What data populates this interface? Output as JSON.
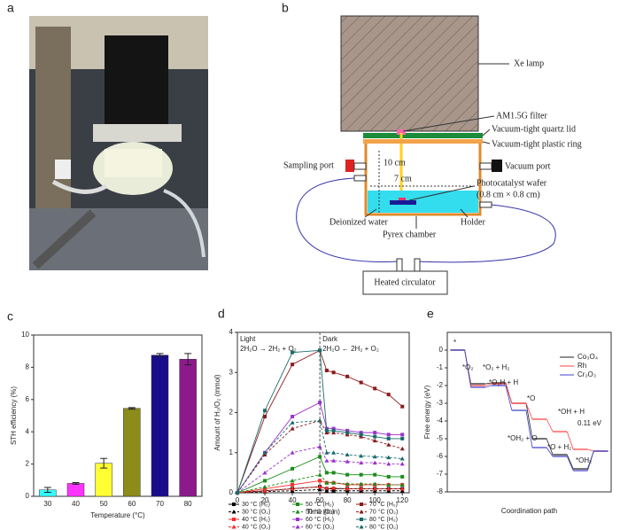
{
  "panels": {
    "a": "a",
    "b": "b",
    "c": "c",
    "d": "d",
    "e": "e"
  },
  "diagram": {
    "xe_lamp": "Xe lamp",
    "filter": "AM1.5G filter",
    "lid": "Vacuum-tight quartz lid",
    "ring": "Vacuum-tight plastic ring",
    "sampling": "Sampling port",
    "height": "10 cm",
    "vacuum": "Vacuum port",
    "width": "7 cm",
    "wafer": "Photocatalyst wafer",
    "wafer_size": "(0.8 cm × 0.8 cm)",
    "water": "Deionized water",
    "holder": "Holder",
    "chamber": "Pyrex chamber",
    "circulator": "Heated circulator"
  },
  "chart_data": [
    {
      "type": "bar",
      "categories": [
        "30",
        "40",
        "50",
        "60",
        "70",
        "80"
      ],
      "values": [
        0.4,
        0.8,
        2.05,
        5.45,
        8.75,
        8.5
      ],
      "errors": [
        0.15,
        0.05,
        0.3,
        0.05,
        0.1,
        0.35
      ],
      "colors": [
        "#33ffff",
        "#ff33ff",
        "#ffff33",
        "#8c8c1a",
        "#1a0d8c",
        "#8c1a8c"
      ],
      "ylim": [
        0,
        10
      ],
      "yticks": [
        0,
        2,
        4,
        6,
        8,
        10
      ],
      "xlabel": "Temperature (°C)",
      "ylabel": "STH efficiency (%)"
    },
    {
      "type": "line",
      "x": [
        0,
        20,
        40,
        60,
        65,
        70,
        80,
        90,
        100,
        110,
        120
      ],
      "xlim": [
        0,
        125
      ],
      "xticks": [
        0,
        20,
        40,
        60,
        80,
        100,
        120
      ],
      "ylim": [
        0,
        4
      ],
      "yticks": [
        0,
        1,
        2,
        3,
        4
      ],
      "divider": 60,
      "xlabel": "Time (min)",
      "ylabel": "Amount of H₂/O₂ (mmol)",
      "annotations": [
        "Light",
        "2H₂O → 2H₂ + O₂",
        "Dark",
        "2H₂O ← 2H₂ + O₂"
      ],
      "series": [
        {
          "name": "30 °C (H₂)",
          "color": "#000000",
          "dash": false,
          "marker": "square",
          "values": [
            0,
            0.05,
            0.1,
            0.15,
            0.1,
            0.1,
            0.1,
            0.1,
            0.1,
            0.1,
            0.1
          ]
        },
        {
          "name": "30 °C (O₂)",
          "color": "#000000",
          "dash": true,
          "marker": "triangle",
          "values": [
            0,
            0.03,
            0.05,
            0.08,
            0.05,
            0.05,
            0.05,
            0.05,
            0.05,
            0.05,
            0.05
          ]
        },
        {
          "name": "40 °C (H₂)",
          "color": "#ff2a2a",
          "dash": false,
          "marker": "square",
          "values": [
            0,
            0.1,
            0.2,
            0.3,
            0.25,
            0.25,
            0.2,
            0.2,
            0.2,
            0.2,
            0.2
          ]
        },
        {
          "name": "40 °C (O₂)",
          "color": "#ff2a2a",
          "dash": true,
          "marker": "triangle",
          "values": [
            0,
            0.05,
            0.1,
            0.15,
            0.12,
            0.12,
            0.1,
            0.1,
            0.1,
            0.1,
            0.1
          ]
        },
        {
          "name": "50 °C (H₂)",
          "color": "#1a8c1a",
          "dash": false,
          "marker": "square",
          "values": [
            0,
            0.3,
            0.6,
            0.9,
            0.5,
            0.5,
            0.45,
            0.45,
            0.45,
            0.4,
            0.4
          ]
        },
        {
          "name": "50 °C (O₂)",
          "color": "#1a8c1a",
          "dash": true,
          "marker": "triangle",
          "values": [
            0,
            0.15,
            0.3,
            0.45,
            0.25,
            0.25,
            0.22,
            0.22,
            0.22,
            0.2,
            0.2
          ]
        },
        {
          "name": "60 °C (H₂)",
          "color": "#9933cc",
          "dash": false,
          "marker": "square",
          "values": [
            0,
            1.0,
            1.9,
            2.25,
            1.6,
            1.6,
            1.55,
            1.5,
            1.5,
            1.45,
            1.45
          ]
        },
        {
          "name": "60 °C (O₂)",
          "color": "#9933cc",
          "dash": true,
          "marker": "triangle",
          "values": [
            0,
            0.5,
            1.0,
            1.15,
            0.8,
            0.8,
            0.78,
            0.75,
            0.75,
            0.72,
            0.72
          ]
        },
        {
          "name": "70 °C (H₂)",
          "color": "#8c1a1a",
          "dash": false,
          "marker": "square",
          "values": [
            0,
            1.9,
            3.2,
            3.55,
            3.05,
            3.0,
            2.9,
            2.75,
            2.6,
            2.45,
            2.15
          ]
        },
        {
          "name": "70 °C (O₂)",
          "color": "#8c1a1a",
          "dash": true,
          "marker": "triangle",
          "values": [
            0,
            0.95,
            1.6,
            1.8,
            1.5,
            1.5,
            1.45,
            1.4,
            1.3,
            1.2,
            1.1
          ]
        },
        {
          "name": "80 °C (H₂)",
          "color": "#1a6b6b",
          "dash": false,
          "marker": "square",
          "values": [
            0,
            2.05,
            3.5,
            3.55,
            1.55,
            1.55,
            1.5,
            1.45,
            1.4,
            1.35,
            1.35
          ]
        },
        {
          "name": "80 °C (O₂)",
          "color": "#1a6b6b",
          "dash": true,
          "marker": "triangle",
          "values": [
            0,
            1.0,
            1.75,
            1.8,
            1.0,
            1.0,
            0.95,
            0.92,
            0.9,
            0.88,
            0.85
          ]
        }
      ]
    },
    {
      "type": "step",
      "ylim": [
        -8,
        1
      ],
      "yticks": [
        -8,
        -7,
        -6,
        -5,
        -4,
        -3,
        -2,
        -1,
        0
      ],
      "xlabel": "Coordination path",
      "ylabel": "Free energy (eV)",
      "annotations": [
        "*",
        "*O₂",
        "*O₂ + H₂",
        "*O₂H + H",
        "*O",
        "*OH + H",
        "0.11 eV",
        "*OH₂ + O",
        "*O + H₂",
        "*OH₂"
      ],
      "series": [
        {
          "name": "Co₃O₄",
          "color": "#222222",
          "values": [
            0,
            -1.9,
            -1.85,
            -3.0,
            -5.0,
            -5.9,
            -6.7,
            -5.7
          ]
        },
        {
          "name": "Rh",
          "color": "#ff4040",
          "values": [
            0,
            -2.0,
            -1.9,
            -3.0,
            -3.9,
            -4.6,
            -5.6,
            -5.7
          ]
        },
        {
          "name": "Cr₂O₃",
          "color": "#4040cc",
          "values": [
            0,
            -2.1,
            -2.0,
            -3.4,
            -5.5,
            -6.0,
            -6.8,
            -5.7
          ]
        }
      ]
    }
  ]
}
